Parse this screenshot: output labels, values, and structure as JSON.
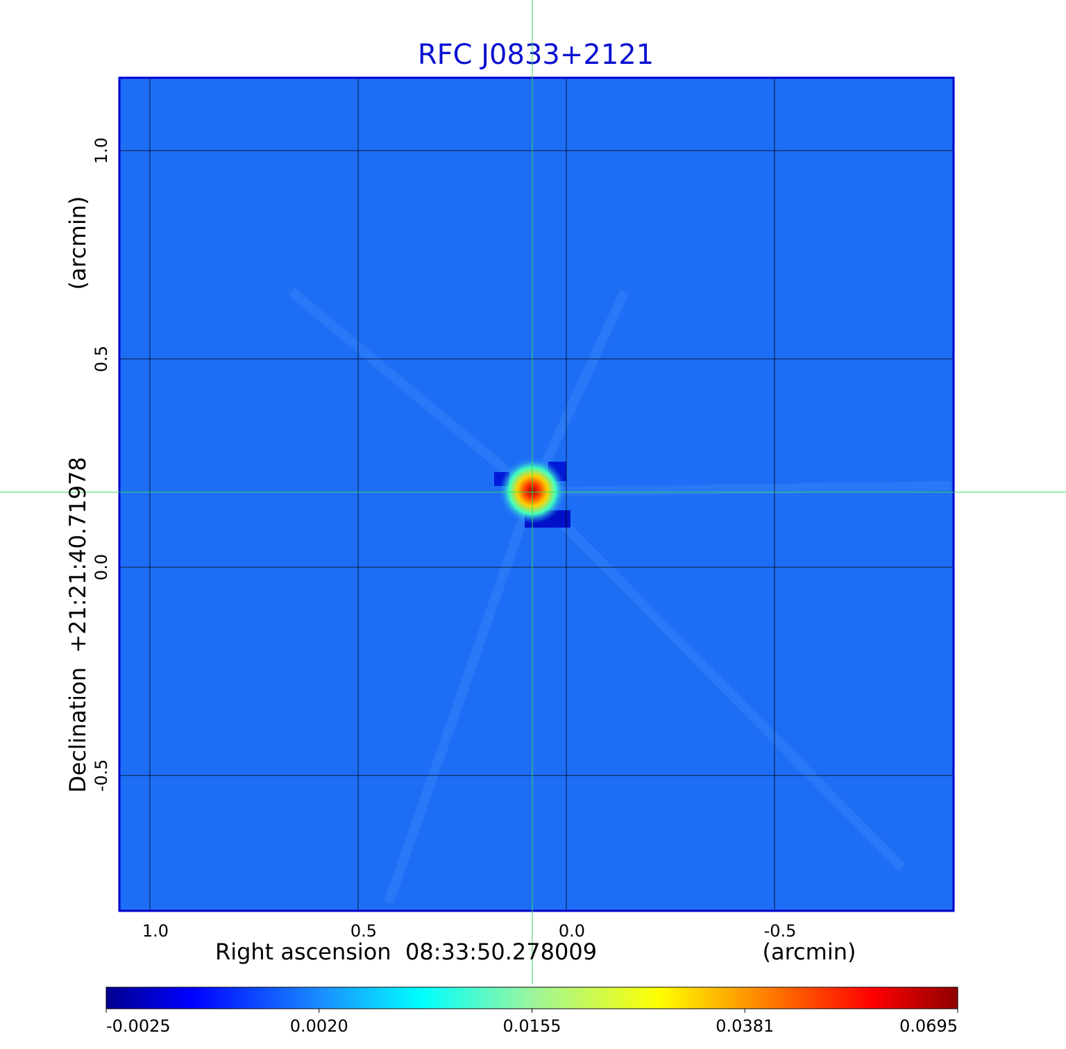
{
  "chart_data": {
    "type": "image",
    "title": "RFC J0833+2121",
    "x_label": "Right ascension  08:33:50.278009",
    "x_unit": "(arcmin)",
    "y_label": "Declination  +21:21:40.71978",
    "y_unit": "(arcmin)",
    "xlim": [
      1.0733,
      -0.93
    ],
    "ylim": [
      -0.825,
      1.175
    ],
    "xticks": [
      {
        "value": 1,
        "label": "1.0"
      },
      0.5,
      {
        "value": 0,
        "label": "0.0"
      },
      -0.5
    ],
    "yticks": [
      -0.5,
      {
        "value": 0,
        "label": "0.0"
      },
      0.5,
      {
        "value": 1,
        "label": "1.0"
      }
    ],
    "grid": true,
    "colorbar_ticks": [
      -0.0025,
      {
        "value": 0.002,
        "label": "0.0020"
      },
      0.0155,
      0.0381,
      0.0695
    ]
  }
}
